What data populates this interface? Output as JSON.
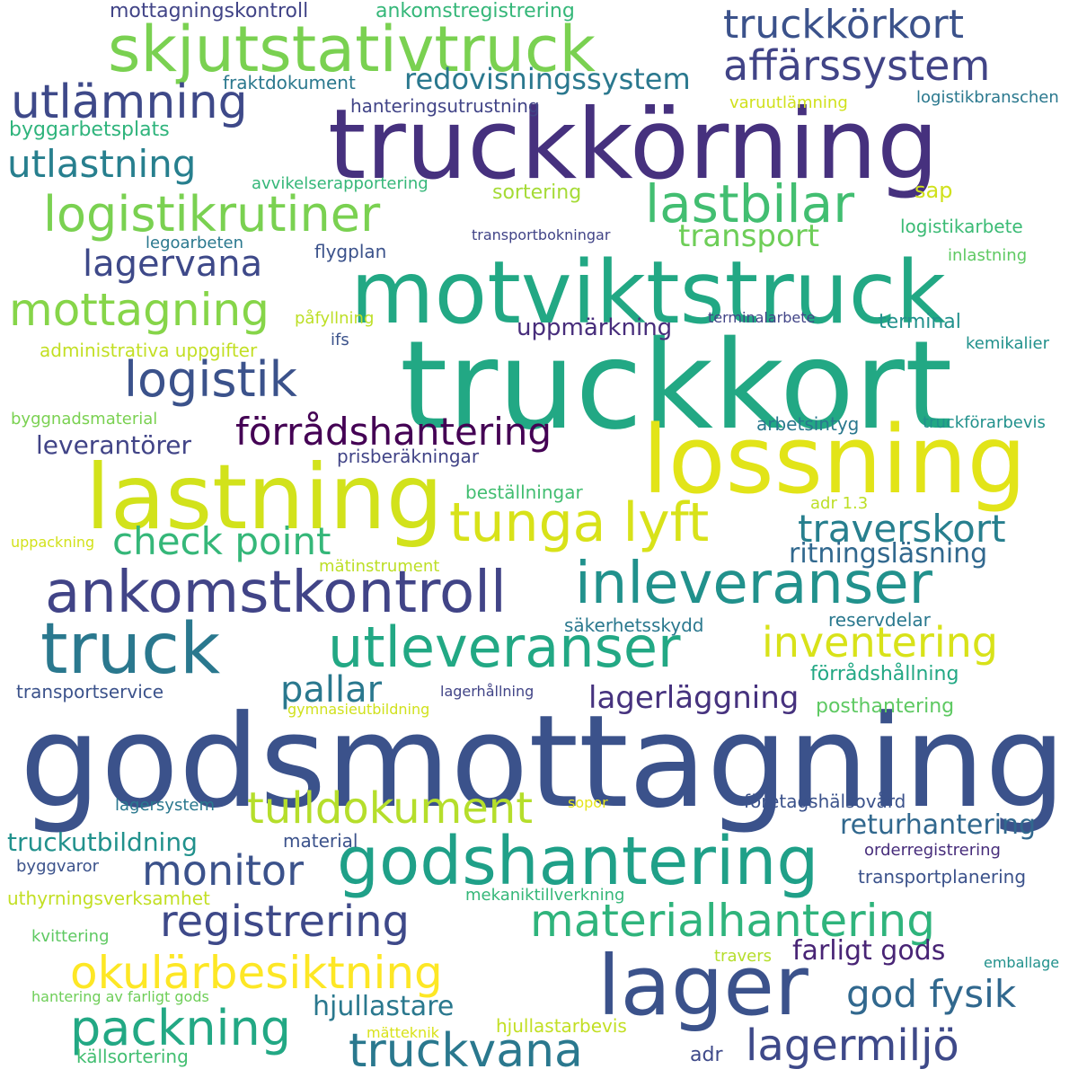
{
  "words": [
    {
      "text": "godsmottagning",
      "color": "#3b528b"
    },
    {
      "text": "truckkort",
      "color": "#22a884"
    },
    {
      "text": "truckkörning",
      "color": "#46317e"
    },
    {
      "text": "motviktstruck",
      "color": "#22a884"
    },
    {
      "text": "lossning",
      "color": "#e2e418"
    },
    {
      "text": "lastning",
      "color": "#d2e21b"
    },
    {
      "text": "lager",
      "color": "#3b528b"
    },
    {
      "text": "truck",
      "color": "#2a788e"
    },
    {
      "text": "godshantering",
      "color": "#1fa088"
    },
    {
      "text": "skjutstativtruck",
      "color": "#7ad151"
    },
    {
      "text": "ankomstkontroll",
      "color": "#414487"
    },
    {
      "text": "inleveranser",
      "color": "#21918c"
    },
    {
      "text": "utleveranser",
      "color": "#22a884"
    },
    {
      "text": "tunga lyft",
      "color": "#d8e219"
    },
    {
      "text": "logistikrutiner",
      "color": "#7ad151"
    },
    {
      "text": "lastbilar",
      "color": "#42be71"
    },
    {
      "text": "materialhantering",
      "color": "#2fb47c"
    },
    {
      "text": "registrering",
      "color": "#3e4989"
    },
    {
      "text": "okulärbesiktning",
      "color": "#fde725"
    },
    {
      "text": "packning",
      "color": "#22a884"
    },
    {
      "text": "truckvana",
      "color": "#2a788e"
    },
    {
      "text": "lagermiljö",
      "color": "#3e4989"
    },
    {
      "text": "logistik",
      "color": "#3b528b"
    },
    {
      "text": "mottagning",
      "color": "#86d549"
    },
    {
      "text": "utlämning",
      "color": "#3e4989"
    },
    {
      "text": "affärssystem",
      "color": "#414487"
    },
    {
      "text": "truckkörkort",
      "color": "#3b528b"
    },
    {
      "text": "inventering",
      "color": "#d8e219"
    },
    {
      "text": "förrådshantering",
      "color": "#440154"
    },
    {
      "text": "tulldokument",
      "color": "#b5de2b"
    },
    {
      "text": "monitor",
      "color": "#3b528b"
    },
    {
      "text": "check point",
      "color": "#35b779"
    },
    {
      "text": "traverskort",
      "color": "#277f8e"
    },
    {
      "text": "god fysik",
      "color": "#31688e"
    },
    {
      "text": "utlastning",
      "color": "#277f8e"
    },
    {
      "text": "lagervana",
      "color": "#3e4989"
    },
    {
      "text": "pallar",
      "color": "#2a788e"
    },
    {
      "text": "lagerläggning",
      "color": "#46327e"
    },
    {
      "text": "redovisningssystem",
      "color": "#2a788e"
    },
    {
      "text": "transport",
      "color": "#6ece58"
    },
    {
      "text": "ritningsläsning",
      "color": "#31688e"
    },
    {
      "text": "returhantering",
      "color": "#31688e"
    },
    {
      "text": "truckutbildning",
      "color": "#21918c"
    },
    {
      "text": "farligt gods",
      "color": "#482475"
    },
    {
      "text": "hjullastare",
      "color": "#2a788e"
    },
    {
      "text": "leverantörer",
      "color": "#414487"
    },
    {
      "text": "uppmärkning",
      "color": "#472d7b"
    },
    {
      "text": "mottagningskontroll",
      "color": "#414487"
    },
    {
      "text": "ankomstregistrering",
      "color": "#35b779"
    },
    {
      "text": "fraktdokument",
      "color": "#2a788e"
    },
    {
      "text": "byggarbetsplats",
      "color": "#2fb47c"
    },
    {
      "text": "hanteringsutrustning",
      "color": "#414487"
    },
    {
      "text": "varuutlämning",
      "color": "#d0e11c"
    },
    {
      "text": "logistikbranschen",
      "color": "#2a788e"
    },
    {
      "text": "avvikelserapportering",
      "color": "#35b779"
    },
    {
      "text": "sortering",
      "color": "#a5db36"
    },
    {
      "text": "sap",
      "color": "#d0e11c"
    },
    {
      "text": "logistikarbete",
      "color": "#3bbb75"
    },
    {
      "text": "legoarbeten",
      "color": "#2a788e"
    },
    {
      "text": "transportbokningar",
      "color": "#414487"
    },
    {
      "text": "flygplan",
      "color": "#3b528b"
    },
    {
      "text": "inlastning",
      "color": "#5ec962"
    },
    {
      "text": "påfyllning",
      "color": "#bddf26"
    },
    {
      "text": "terminalarbete",
      "color": "#414487"
    },
    {
      "text": "terminal",
      "color": "#21918c"
    },
    {
      "text": "administrativa uppgifter",
      "color": "#c2df23"
    },
    {
      "text": "ifs",
      "color": "#3b528b"
    },
    {
      "text": "kemikalier",
      "color": "#21918c"
    },
    {
      "text": "byggnadsmaterial",
      "color": "#7ad151"
    },
    {
      "text": "arbetsintyg",
      "color": "#2a788e"
    },
    {
      "text": "truckförarbevis",
      "color": "#21918c"
    },
    {
      "text": "prisberäkningar",
      "color": "#414487"
    },
    {
      "text": "beställningar",
      "color": "#42be71"
    },
    {
      "text": "adr 1.3",
      "color": "#bddf26"
    },
    {
      "text": "uppackning",
      "color": "#d2e21b"
    },
    {
      "text": "mätinstrument",
      "color": "#bddf26"
    },
    {
      "text": "säkerhetsskydd",
      "color": "#2a788e"
    },
    {
      "text": "reservdelar",
      "color": "#2a788e"
    },
    {
      "text": "förrådshållning",
      "color": "#22a884"
    },
    {
      "text": "transportservice",
      "color": "#3b528b"
    },
    {
      "text": "lagerhållning",
      "color": "#414487"
    },
    {
      "text": "gymnasieutbildning",
      "color": "#d0e11c"
    },
    {
      "text": "posthantering",
      "color": "#5ec962"
    },
    {
      "text": "lagersystem",
      "color": "#2a788e"
    },
    {
      "text": "sopor",
      "color": "#e5e419"
    },
    {
      "text": "företagshälsovård",
      "color": "#3b528b"
    },
    {
      "text": "material",
      "color": "#3b528b"
    },
    {
      "text": "orderregistrering",
      "color": "#472d7b"
    },
    {
      "text": "byggvaror",
      "color": "#3b528b"
    },
    {
      "text": "transportplanering",
      "color": "#3b528b"
    },
    {
      "text": "uthyrningsverksamhet",
      "color": "#c2df23"
    },
    {
      "text": "mekaniktillverkning",
      "color": "#35b779"
    },
    {
      "text": "kvittering",
      "color": "#5ec962"
    },
    {
      "text": "travers",
      "color": "#b5de2b"
    },
    {
      "text": "emballage",
      "color": "#21918c"
    },
    {
      "text": "hantering av farligt gods",
      "color": "#6ece58"
    },
    {
      "text": "mätteknik",
      "color": "#d8e219"
    },
    {
      "text": "hjullastarbevis",
      "color": "#c2df23"
    },
    {
      "text": "källsortering",
      "color": "#42be71"
    },
    {
      "text": "adr",
      "color": "#3e4989"
    }
  ]
}
